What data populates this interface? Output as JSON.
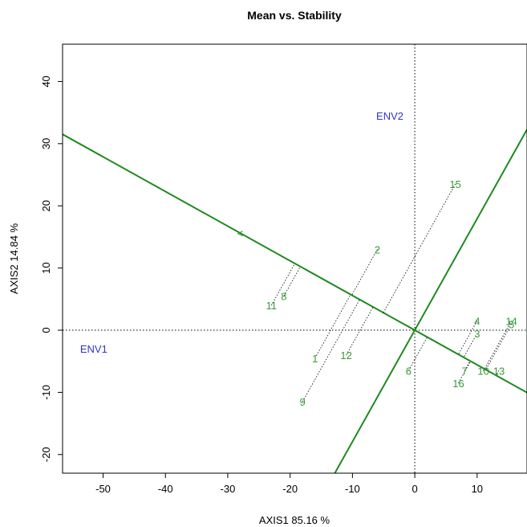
{
  "chart_data": {
    "type": "scatter",
    "title": "Mean vs. Stability",
    "xlabel": "AXIS1 85.16 %",
    "ylabel": "AXIS2 14.84 %",
    "xlim": [
      -56.5,
      18
    ],
    "ylim": [
      -23,
      46
    ],
    "xticks": [
      -50,
      -40,
      -30,
      -20,
      -10,
      0,
      10
    ],
    "yticks": [
      -20,
      -10,
      0,
      10,
      20,
      30,
      40
    ],
    "colors": {
      "genotype": "#3a9a3a",
      "environment": "#3333cc",
      "line": "#1f8a1f",
      "axis": "#000000"
    },
    "mean_env_axis": {
      "slope": -0.5576,
      "marker_x": -28,
      "marker_label": "<"
    },
    "genotypes": [
      {
        "label": "1",
        "x": -16,
        "y": -4.5
      },
      {
        "label": "2",
        "x": -6,
        "y": 13
      },
      {
        "label": "3",
        "x": 10,
        "y": -0.5
      },
      {
        "label": "4",
        "x": 10,
        "y": 1.5
      },
      {
        "label": "5",
        "x": 15.5,
        "y": 1
      },
      {
        "label": "6",
        "x": -1,
        "y": -6.5
      },
      {
        "label": "7",
        "x": 8,
        "y": -6.5
      },
      {
        "label": "8",
        "x": -21,
        "y": 5.5
      },
      {
        "label": "9",
        "x": -18,
        "y": -11.5
      },
      {
        "label": "10",
        "x": 11,
        "y": -6.5
      },
      {
        "label": "11",
        "x": -23,
        "y": 4
      },
      {
        "label": "12",
        "x": -11,
        "y": -4
      },
      {
        "label": "13",
        "x": 13.5,
        "y": -6.5
      },
      {
        "label": "14",
        "x": 15.5,
        "y": 1.5
      },
      {
        "label": "15",
        "x": 6.5,
        "y": 23.5
      },
      {
        "label": "16",
        "x": 7,
        "y": -8.5
      }
    ],
    "environments": [
      {
        "label": "ENV1",
        "x": -51.5,
        "y": -3
      },
      {
        "label": "ENV2",
        "x": -4,
        "y": 34.5
      }
    ],
    "grid": false,
    "legend": "none"
  }
}
